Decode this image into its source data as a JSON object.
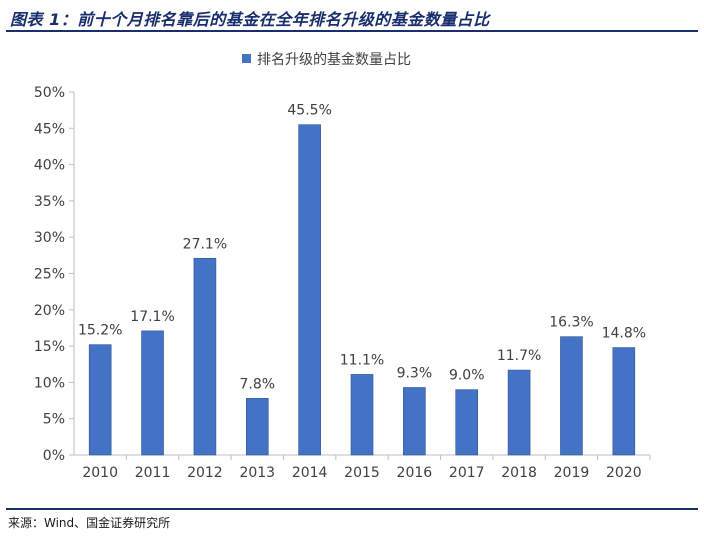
{
  "header": {
    "title": "图表 1：前十个月排名靠后的基金在全年排名升级的基金数量占比"
  },
  "footer": {
    "source": "来源：Wind、国金证券研究所"
  },
  "colors": {
    "bar": "#4472c4",
    "accent": "#1a2e6e",
    "axis": "#bfbfbf",
    "text": "#404040"
  },
  "chart_data": {
    "type": "bar",
    "title": "",
    "xlabel": "",
    "ylabel": "",
    "categories": [
      "2010",
      "2011",
      "2012",
      "2013",
      "2014",
      "2015",
      "2016",
      "2017",
      "2018",
      "2019",
      "2020"
    ],
    "series": [
      {
        "name": "排名升级的基金数量占比",
        "values": [
          15.2,
          17.1,
          27.1,
          7.8,
          45.5,
          11.1,
          9.3,
          9.0,
          11.7,
          16.3,
          14.8
        ],
        "data_labels": [
          "15.2%",
          "17.1%",
          "27.1%",
          "7.8%",
          "45.5%",
          "11.1%",
          "9.3%",
          "9.0%",
          "11.7%",
          "16.3%",
          "14.8%"
        ]
      }
    ],
    "ylim": [
      0,
      50
    ],
    "yticks": [
      "0%",
      "5%",
      "10%",
      "15%",
      "20%",
      "25%",
      "30%",
      "35%",
      "40%",
      "45%",
      "50%"
    ],
    "grid": false,
    "legend": "top-center"
  }
}
